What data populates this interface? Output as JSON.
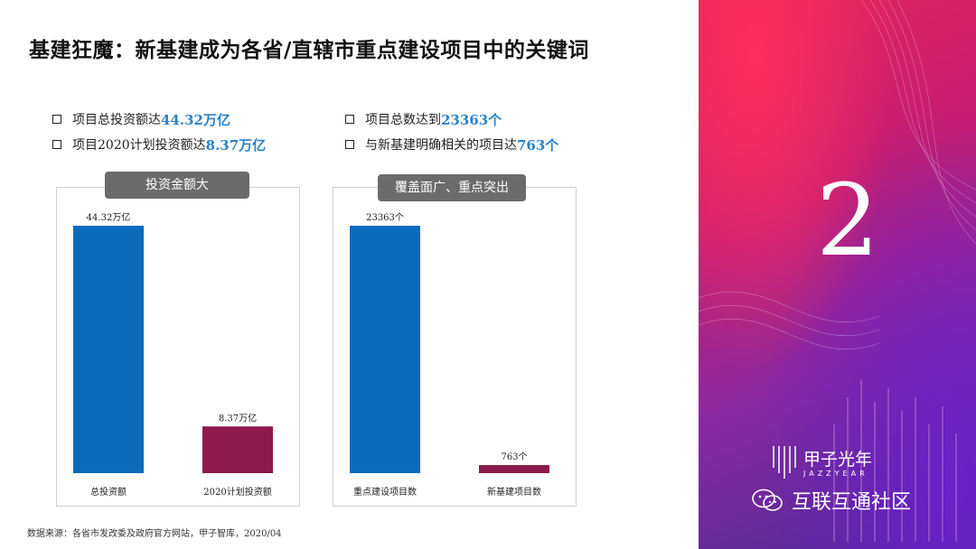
{
  "title": "基建狂魔：新基建成为各省/直辖市重点建设项目中的关键词",
  "bullets_left": [
    {
      "prefix": "项目总投资额达",
      "value": "44.32万亿"
    },
    {
      "prefix": "项目2020计划投资额达",
      "value": "8.37万亿"
    }
  ],
  "bullets_right": [
    {
      "prefix": "项目总数达到",
      "value": "23363个"
    },
    {
      "prefix": "与新基建明确相关的项目达",
      "value": "763个"
    }
  ],
  "colors": {
    "blue": "#0a6bbd",
    "maroon": "#8c1a4b",
    "pill": "#6b6b6b",
    "highlight": "#2b82c9"
  },
  "chart_data": [
    {
      "type": "bar",
      "title": "投资金额大",
      "categories": [
        "总投资额",
        "2020计划投资额"
      ],
      "values": [
        44.32,
        8.37
      ],
      "data_labels": [
        "44.32万亿",
        "8.37万亿"
      ],
      "bar_colors": [
        "#0a6bbd",
        "#8c1a4b"
      ]
    },
    {
      "type": "bar",
      "title": "覆盖面广、重点突出",
      "categories": [
        "重点建设项目数",
        "新基建项目数"
      ],
      "values": [
        23363,
        763
      ],
      "data_labels": [
        "23363个",
        "763个"
      ],
      "bar_colors": [
        "#0a6bbd",
        "#8c1a4b"
      ]
    }
  ],
  "source": "数据来源：各省市发改委及政府官方网站，甲子智库，2020/04",
  "section_number": "2",
  "brand": {
    "name": "甲子光年",
    "sub": "JAZZYEAR"
  },
  "watermark": "互联互通社区",
  "icons": {
    "watermark": "wechat-icon",
    "brand": "jazzyear-logo-icon"
  }
}
